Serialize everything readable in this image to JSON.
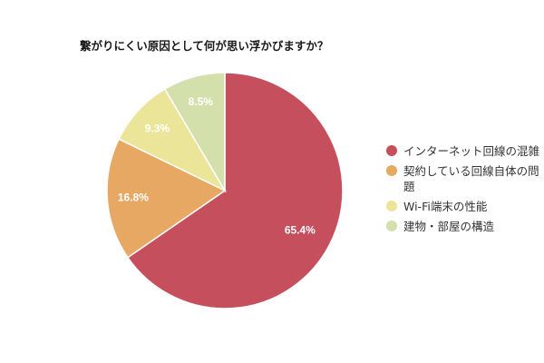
{
  "title": "繋がりにくい原因として何が思い浮かびますか？",
  "chart_data": {
    "type": "pie",
    "title": "繋がりにくい原因として何が思い浮かびますか？",
    "categories": [
      "インターネット回線の混雑",
      "契約している回線自体の問題",
      "Wi-Fi端末の性能",
      "建物・部屋の構造"
    ],
    "values": [
      65.4,
      16.8,
      9.3,
      8.5
    ],
    "labels": [
      "65.4%",
      "16.8%",
      "9.3%",
      "8.5%"
    ],
    "colors": [
      "#c64f5e",
      "#e6a862",
      "#ebe59a",
      "#d3e0ac"
    ],
    "start_angle_deg": 0,
    "direction": "clockwise",
    "legend_position": "right"
  },
  "legend": {
    "items": [
      {
        "label": "インターネット回線の混雑",
        "color": "#c64f5e"
      },
      {
        "label": "契約している回線自体の問題",
        "color": "#e6a862"
      },
      {
        "label": "Wi-Fi端末の性能",
        "color": "#ebe59a"
      },
      {
        "label": "建物・部屋の構造",
        "color": "#d3e0ac"
      }
    ]
  }
}
